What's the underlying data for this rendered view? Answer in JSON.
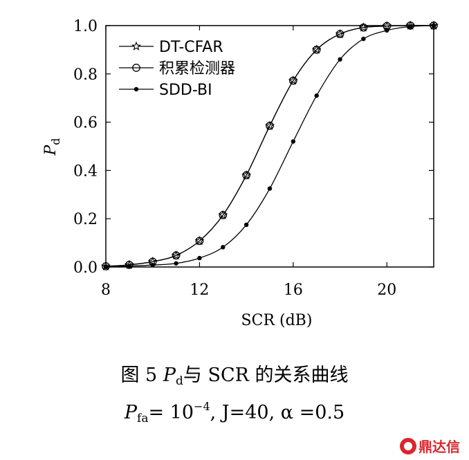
{
  "chart_data": {
    "type": "line",
    "x": [
      8,
      9,
      10,
      11,
      12,
      13,
      14,
      15,
      16,
      17,
      18,
      19,
      20,
      21,
      22
    ],
    "series": [
      {
        "name": "DT-CFAR",
        "marker": "star",
        "values": [
          0.003,
          0.009,
          0.022,
          0.048,
          0.108,
          0.215,
          0.38,
          0.585,
          0.772,
          0.9,
          0.965,
          0.992,
          0.998,
          1.0,
          1.0
        ]
      },
      {
        "name": "积累检测器",
        "marker": "circle",
        "values": [
          0.003,
          0.009,
          0.022,
          0.048,
          0.108,
          0.215,
          0.38,
          0.585,
          0.772,
          0.9,
          0.965,
          0.992,
          0.998,
          1.0,
          1.0
        ]
      },
      {
        "name": "SDD-BI",
        "marker": "dot",
        "values": [
          0.001,
          0.004,
          0.008,
          0.015,
          0.037,
          0.082,
          0.175,
          0.325,
          0.52,
          0.71,
          0.86,
          0.945,
          0.98,
          0.996,
          1.0
        ]
      }
    ],
    "xlim": [
      8,
      22
    ],
    "ylim": [
      0,
      1
    ],
    "xticks": [
      "8",
      "12",
      "16",
      "20"
    ],
    "yticks": [
      "0.0",
      "0.2",
      "0.4",
      "0.6",
      "0.8",
      "1.0"
    ],
    "xlabel": "SCR (dB)",
    "ylabel_main": "P",
    "ylabel_sub": "d",
    "legend_position": "top-left",
    "colors": {
      "line": "#000000",
      "marker_fill": "#ffffff",
      "dot_fill": "#000000"
    }
  },
  "caption": {
    "fig_prefix": "图 5 ",
    "fig_symbol": "P",
    "fig_symbol_sub": "d",
    "fig_rest": "与 SCR 的关系曲线",
    "params_symbol": "P",
    "params_symbol_sub": "fa",
    "params_eq": "= 10",
    "params_exp": "−4",
    "params_rest": ", J=40,  α =0.5"
  },
  "watermark": {
    "text": "鼎达信",
    "color": "#d9272e"
  }
}
